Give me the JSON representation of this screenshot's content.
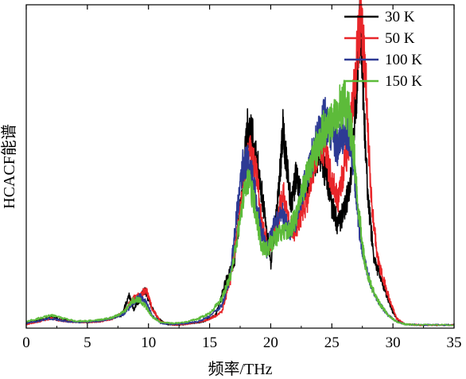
{
  "chart_data": {
    "type": "line",
    "title": "",
    "xlabel": "频率/THz",
    "ylabel": "HCACF能谱",
    "xlim": [
      0,
      35
    ],
    "ylim": [
      0,
      1
    ],
    "xticks": [
      0,
      5,
      10,
      15,
      20,
      25,
      30,
      35
    ],
    "grid": false,
    "legend_position": "top-right",
    "series": [
      {
        "name": "30 K",
        "color": "#000000",
        "points": [
          [
            0,
            0.015
          ],
          [
            1,
            0.025
          ],
          [
            2,
            0.035
          ],
          [
            3,
            0.025
          ],
          [
            4,
            0.02
          ],
          [
            5,
            0.018
          ],
          [
            6,
            0.022
          ],
          [
            7,
            0.03
          ],
          [
            7.8,
            0.04
          ],
          [
            8.4,
            0.1
          ],
          [
            8.8,
            0.06
          ],
          [
            9.3,
            0.09
          ],
          [
            9.7,
            0.12
          ],
          [
            10.2,
            0.07
          ],
          [
            10.8,
            0.03
          ],
          [
            11.5,
            0.012
          ],
          [
            12.5,
            0.01
          ],
          [
            13.5,
            0.015
          ],
          [
            14.5,
            0.02
          ],
          [
            15.5,
            0.04
          ],
          [
            16.3,
            0.14
          ],
          [
            17,
            0.2
          ],
          [
            17.6,
            0.4
          ],
          [
            18.1,
            0.62
          ],
          [
            18.6,
            0.58
          ],
          [
            19,
            0.5
          ],
          [
            19.5,
            0.35
          ],
          [
            20,
            0.2
          ],
          [
            20.4,
            0.32
          ],
          [
            20.7,
            0.44
          ],
          [
            21,
            0.63
          ],
          [
            21.3,
            0.5
          ],
          [
            21.7,
            0.38
          ],
          [
            22.1,
            0.48
          ],
          [
            22.5,
            0.4
          ],
          [
            23,
            0.45
          ],
          [
            23.5,
            0.52
          ],
          [
            24,
            0.55
          ],
          [
            24.5,
            0.48
          ],
          [
            25,
            0.38
          ],
          [
            25.5,
            0.32
          ],
          [
            26,
            0.36
          ],
          [
            26.5,
            0.44
          ],
          [
            27,
            0.72
          ],
          [
            27.3,
            0.95
          ],
          [
            27.6,
            0.7
          ],
          [
            28,
            0.38
          ],
          [
            28.5,
            0.2
          ],
          [
            29,
            0.16
          ],
          [
            29.5,
            0.1
          ],
          [
            30,
            0.05
          ],
          [
            30.5,
            0.02
          ],
          [
            31,
            0.012
          ],
          [
            32,
            0.01
          ],
          [
            33,
            0.01
          ],
          [
            35,
            0.01
          ]
        ]
      },
      {
        "name": "50 K",
        "color": "#e8262a",
        "points": [
          [
            0,
            0.012
          ],
          [
            1,
            0.02
          ],
          [
            2,
            0.03
          ],
          [
            3,
            0.022
          ],
          [
            4,
            0.018
          ],
          [
            5,
            0.018
          ],
          [
            6,
            0.02
          ],
          [
            7,
            0.028
          ],
          [
            8,
            0.05
          ],
          [
            8.7,
            0.09
          ],
          [
            9.3,
            0.1
          ],
          [
            9.8,
            0.12
          ],
          [
            10.3,
            0.06
          ],
          [
            11,
            0.02
          ],
          [
            12,
            0.01
          ],
          [
            13,
            0.012
          ],
          [
            14,
            0.018
          ],
          [
            15,
            0.028
          ],
          [
            16,
            0.05
          ],
          [
            16.7,
            0.15
          ],
          [
            17.3,
            0.3
          ],
          [
            17.8,
            0.45
          ],
          [
            18.3,
            0.55
          ],
          [
            18.8,
            0.48
          ],
          [
            19.3,
            0.32
          ],
          [
            19.8,
            0.25
          ],
          [
            20.4,
            0.3
          ],
          [
            21,
            0.42
          ],
          [
            21.5,
            0.32
          ],
          [
            22,
            0.3
          ],
          [
            22.5,
            0.35
          ],
          [
            23,
            0.4
          ],
          [
            23.5,
            0.5
          ],
          [
            24,
            0.58
          ],
          [
            24.5,
            0.55
          ],
          [
            25,
            0.45
          ],
          [
            25.5,
            0.4
          ],
          [
            26,
            0.5
          ],
          [
            26.5,
            0.6
          ],
          [
            27,
            0.82
          ],
          [
            27.4,
            0.98
          ],
          [
            27.8,
            0.75
          ],
          [
            28.2,
            0.42
          ],
          [
            28.7,
            0.22
          ],
          [
            29.3,
            0.14
          ],
          [
            29.8,
            0.08
          ],
          [
            30.3,
            0.03
          ],
          [
            31,
            0.012
          ],
          [
            32,
            0.01
          ],
          [
            35,
            0.01
          ]
        ]
      },
      {
        "name": "100 K",
        "color": "#2d3a94",
        "points": [
          [
            0,
            0.015
          ],
          [
            1,
            0.022
          ],
          [
            2,
            0.03
          ],
          [
            3,
            0.022
          ],
          [
            4,
            0.018
          ],
          [
            5,
            0.02
          ],
          [
            6,
            0.022
          ],
          [
            7,
            0.03
          ],
          [
            8,
            0.045
          ],
          [
            8.8,
            0.08
          ],
          [
            9.3,
            0.1
          ],
          [
            9.8,
            0.08
          ],
          [
            10.3,
            0.04
          ],
          [
            11,
            0.015
          ],
          [
            12,
            0.012
          ],
          [
            13,
            0.015
          ],
          [
            14,
            0.02
          ],
          [
            15,
            0.035
          ],
          [
            16,
            0.07
          ],
          [
            16.7,
            0.16
          ],
          [
            17.2,
            0.35
          ],
          [
            17.7,
            0.5
          ],
          [
            18.2,
            0.52
          ],
          [
            18.7,
            0.42
          ],
          [
            19.2,
            0.3
          ],
          [
            19.7,
            0.24
          ],
          [
            20.3,
            0.32
          ],
          [
            21,
            0.36
          ],
          [
            21.5,
            0.3
          ],
          [
            22,
            0.33
          ],
          [
            22.6,
            0.42
          ],
          [
            23.2,
            0.5
          ],
          [
            23.8,
            0.6
          ],
          [
            24.4,
            0.65
          ],
          [
            25,
            0.6
          ],
          [
            25.5,
            0.56
          ],
          [
            26,
            0.62
          ],
          [
            26.4,
            0.6
          ],
          [
            26.8,
            0.5
          ],
          [
            27.2,
            0.32
          ],
          [
            27.7,
            0.2
          ],
          [
            28.3,
            0.12
          ],
          [
            29,
            0.07
          ],
          [
            29.6,
            0.04
          ],
          [
            30.3,
            0.02
          ],
          [
            31,
            0.012
          ],
          [
            32,
            0.01
          ],
          [
            35,
            0.01
          ]
        ]
      },
      {
        "name": "150 K",
        "color": "#5dbb3a",
        "points": [
          [
            0,
            0.02
          ],
          [
            1,
            0.03
          ],
          [
            2,
            0.04
          ],
          [
            3,
            0.03
          ],
          [
            4,
            0.022
          ],
          [
            5,
            0.022
          ],
          [
            6,
            0.025
          ],
          [
            7,
            0.032
          ],
          [
            8,
            0.05
          ],
          [
            8.7,
            0.085
          ],
          [
            9.2,
            0.09
          ],
          [
            9.7,
            0.07
          ],
          [
            10.3,
            0.035
          ],
          [
            11,
            0.018
          ],
          [
            12,
            0.015
          ],
          [
            13,
            0.018
          ],
          [
            14,
            0.028
          ],
          [
            15,
            0.045
          ],
          [
            16,
            0.09
          ],
          [
            16.7,
            0.16
          ],
          [
            17.2,
            0.26
          ],
          [
            17.7,
            0.4
          ],
          [
            18.2,
            0.45
          ],
          [
            18.7,
            0.38
          ],
          [
            19.2,
            0.26
          ],
          [
            19.7,
            0.24
          ],
          [
            20.3,
            0.28
          ],
          [
            21,
            0.3
          ],
          [
            21.5,
            0.3
          ],
          [
            22,
            0.34
          ],
          [
            22.6,
            0.42
          ],
          [
            23.2,
            0.5
          ],
          [
            23.8,
            0.56
          ],
          [
            24.4,
            0.62
          ],
          [
            25,
            0.64
          ],
          [
            25.5,
            0.68
          ],
          [
            26,
            0.7
          ],
          [
            26.4,
            0.66
          ],
          [
            26.8,
            0.55
          ],
          [
            27.2,
            0.36
          ],
          [
            27.7,
            0.2
          ],
          [
            28.3,
            0.12
          ],
          [
            29,
            0.07
          ],
          [
            29.6,
            0.04
          ],
          [
            30.3,
            0.02
          ],
          [
            31,
            0.012
          ],
          [
            32,
            0.01
          ],
          [
            35,
            0.01
          ]
        ]
      }
    ]
  }
}
